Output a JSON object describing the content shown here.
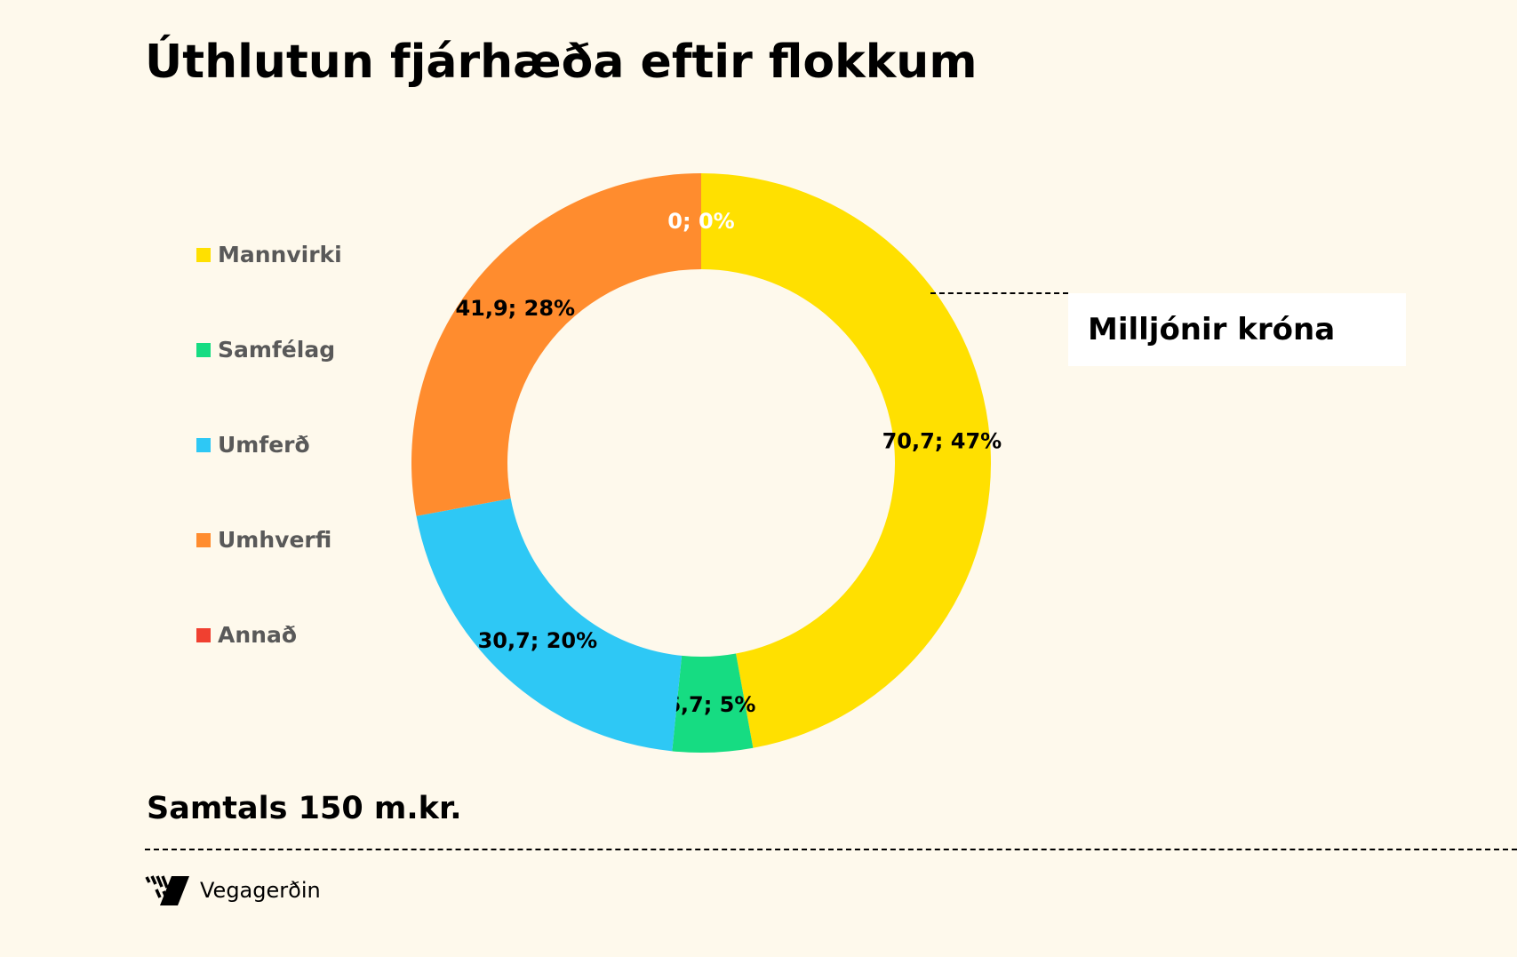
{
  "chart_data": {
    "type": "pie",
    "subtype": "doughnut",
    "title": "Úthlutun fjárhæða eftir flokkum",
    "unit_label": "Milljónir króna",
    "total_label": "Samtals 150 m.kr.",
    "legend_position": "left",
    "categories": [
      "Mannvirki",
      "Samfélag",
      "Umferð",
      "Umhverfi",
      "Annað"
    ],
    "values": [
      70.7,
      6.7,
      30.7,
      41.9,
      0
    ],
    "percents": [
      47,
      5,
      20,
      28,
      0
    ],
    "data_labels": [
      "70,7; 47%",
      "6,7; 5%",
      "30,7; 20%",
      "41,9; 28%",
      "0; 0%"
    ],
    "colors": [
      "#FFE000",
      "#16DC82",
      "#2EC8F5",
      "#FF8C2E",
      "#F04030"
    ],
    "label_colors": [
      "#000000",
      "#000000",
      "#000000",
      "#000000",
      "#FFFFFF"
    ]
  },
  "footer": {
    "brand": "Vegagerðin"
  }
}
